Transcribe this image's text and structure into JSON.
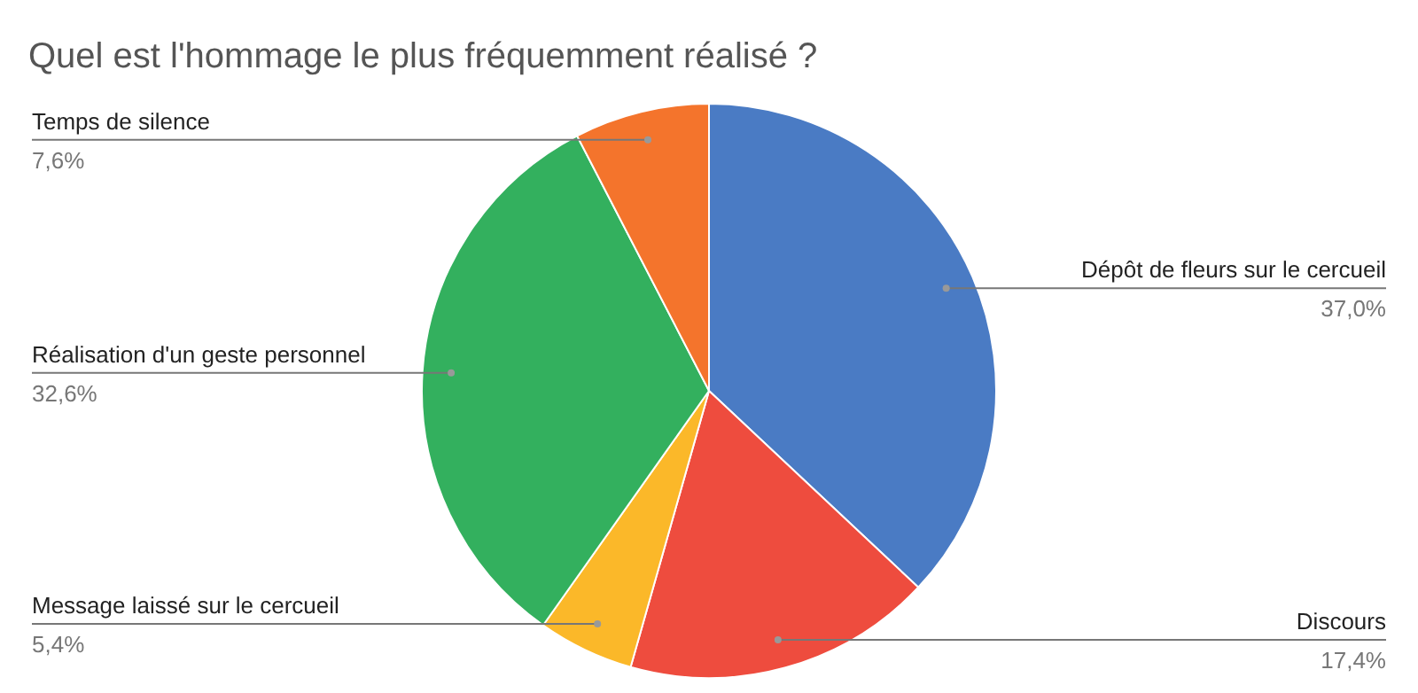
{
  "chart_data": {
    "type": "pie",
    "title": "Quel est l'hommage le plus fréquemment réalisé ?",
    "categories": [
      "Dépôt de fleurs sur le cercueil",
      "Discours",
      "Message laissé sur le cercueil",
      "Réalisation d'un geste personnel",
      "Temps de silence"
    ],
    "values": [
      37.0,
      17.4,
      5.4,
      32.6,
      7.6
    ],
    "colors": [
      "#4a7bc4",
      "#ee4c3e",
      "#fbb829",
      "#33b05e",
      "#f4742c"
    ],
    "value_labels": [
      "37,0%",
      "17,4%",
      "5,4%",
      "32,6%",
      "7,6%"
    ],
    "legend": false
  }
}
